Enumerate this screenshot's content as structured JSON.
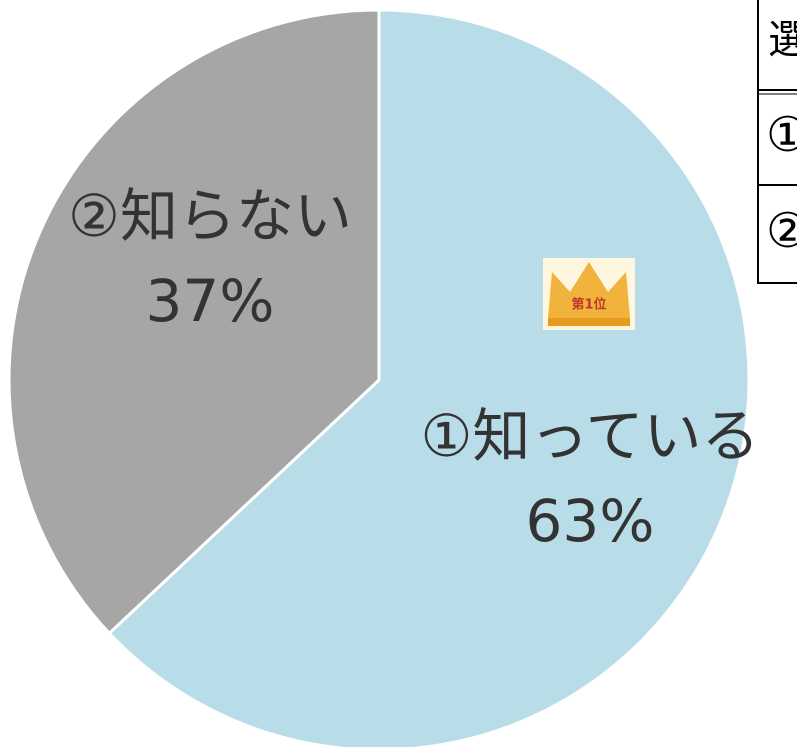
{
  "chart_data": {
    "type": "pie",
    "categories": [
      "①知っている",
      "②知らない"
    ],
    "values": [
      63,
      37
    ],
    "value_labels": [
      "63%",
      "37%"
    ],
    "colors": [
      "#b8dce8",
      "#a6a6a6"
    ],
    "badge": "第1位"
  },
  "table": {
    "header": "選",
    "rows": [
      "①",
      "②"
    ]
  }
}
